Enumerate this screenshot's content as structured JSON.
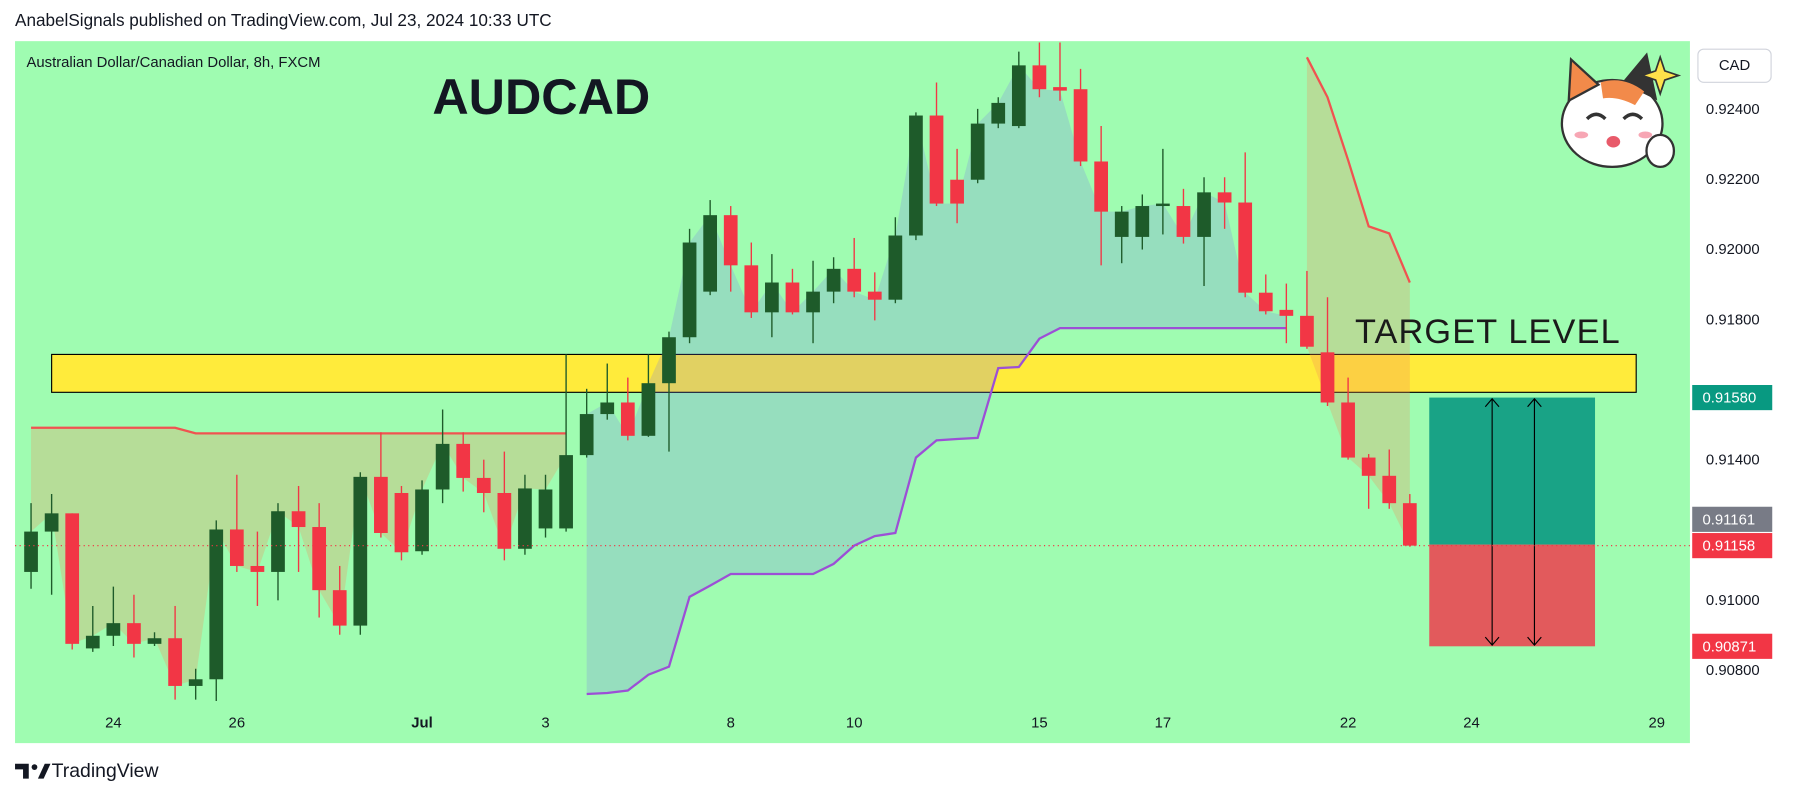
{
  "header": "AnabelSignals published on TradingView.com, Jul 23, 2024 10:33 UTC",
  "footer": "TradingView",
  "chart_data": {
    "type": "candlestick",
    "title": "AUDCAD",
    "subtitle": "Australian Dollar/Canadian Dollar, 8h, FXCM",
    "currency": "CAD",
    "annotation": "TARGET LEVEL",
    "categories": [
      null,
      null,
      null,
      null,
      "24",
      null,
      null,
      null,
      null,
      null,
      "26",
      null,
      null,
      null,
      null,
      null,
      null,
      null,
      null,
      "Jul",
      null,
      null,
      null,
      null,
      null,
      "3",
      null,
      null,
      null,
      null,
      null,
      null,
      null,
      null,
      "8",
      null,
      null,
      null,
      null,
      null,
      "10",
      null,
      null,
      null,
      null,
      null,
      null,
      null,
      null,
      "15",
      null,
      null,
      null,
      null,
      null,
      "17",
      null,
      null,
      null,
      null,
      null,
      null,
      null,
      null,
      "22",
      null,
      null,
      null,
      null,
      null,
      "24",
      null,
      null,
      null,
      null,
      null,
      null,
      null,
      null,
      "29"
    ],
    "open": [
      0.91083,
      0.91198,
      0.9125,
      0.90865,
      0.90901,
      0.90937,
      0.90878,
      0.90894,
      0.90758,
      0.90777,
      0.91204,
      0.911,
      0.91083,
      0.91256,
      0.91211,
      0.91031,
      0.9093,
      0.91354,
      0.91308,
      0.91142,
      0.91318,
      0.91448,
      0.91351,
      0.91308,
      0.91149,
      0.91207,
      0.91207,
      0.91416,
      0.91533,
      0.91566,
      0.91471,
      0.91621,
      0.91752,
      0.91882,
      0.921,
      0.91957,
      0.91823,
      0.91908,
      0.91823,
      0.91882,
      0.91947,
      0.91882,
      0.91859,
      0.92042,
      0.92384,
      0.92201,
      0.92201,
      0.92361,
      0.92354,
      0.92527,
      0.92465,
      0.92459,
      0.92253,
      0.92038,
      0.92038,
      0.92126,
      0.92126,
      0.92038,
      0.92165,
      0.92136,
      0.91879,
      0.9183,
      0.91813,
      0.91709,
      0.91566,
      0.91409,
      0.91357,
      0.91279,
      null,
      null,
      null,
      null,
      null,
      null,
      null,
      null,
      null,
      null,
      null,
      null
    ],
    "high": [
      0.91279,
      0.91305,
      0.9125,
      0.90986,
      0.91041,
      0.91018,
      0.90911,
      0.90986,
      0.90807,
      0.9123,
      0.9136,
      0.91198,
      0.91279,
      0.91328,
      0.91279,
      0.911,
      0.91367,
      0.91481,
      0.91328,
      0.91344,
      0.91546,
      0.91481,
      0.91403,
      0.91426,
      0.9136,
      0.9136,
      0.91703,
      0.91605,
      0.91677,
      0.91637,
      0.91703,
      0.91768,
      0.92061,
      0.92143,
      0.92126,
      0.92022,
      0.91989,
      0.91947,
      0.9197,
      0.9198,
      0.92035,
      0.91937,
      0.92094,
      0.92393,
      0.92478,
      0.92289,
      0.92403,
      0.92436,
      0.92566,
      0.92592,
      0.92592,
      0.92517,
      0.92354,
      0.92126,
      0.92159,
      0.92289,
      0.92175,
      0.92208,
      0.92208,
      0.92279,
      0.91931,
      0.91905,
      0.91941,
      0.91866,
      0.91637,
      0.91419,
      0.91432,
      0.91305,
      null,
      null,
      null,
      null,
      null,
      null,
      null,
      null,
      null,
      null,
      null,
      null
    ],
    "low": [
      0.91035,
      0.91018,
      0.90862,
      0.90855,
      0.90872,
      0.90839,
      0.90872,
      0.90719,
      0.90719,
      0.90715,
      0.91083,
      0.90986,
      0.91002,
      0.91083,
      0.90953,
      0.90904,
      0.90904,
      0.91181,
      0.91116,
      0.91132,
      0.91279,
      0.91312,
      0.91253,
      0.91116,
      0.91132,
      0.91181,
      0.91198,
      0.91409,
      0.91517,
      0.91458,
      0.91468,
      0.91426,
      0.91735,
      0.91872,
      0.91882,
      0.91807,
      0.91752,
      0.91817,
      0.91735,
      0.91849,
      0.91866,
      0.918,
      0.91849,
      0.92029,
      0.92126,
      0.92077,
      0.92191,
      0.92348,
      0.92348,
      0.92436,
      0.92426,
      0.9224,
      0.91957,
      0.91963,
      0.92002,
      0.92045,
      0.92019,
      0.91898,
      0.92061,
      0.91866,
      0.91817,
      0.91735,
      0.91719,
      0.91556,
      0.91403,
      0.91263,
      0.91263,
      0.91155,
      null,
      null,
      null,
      null,
      null,
      null,
      null,
      null,
      null,
      null,
      null,
      null
    ],
    "close": [
      0.91198,
      0.9125,
      0.90878,
      0.90901,
      0.90937,
      0.90878,
      0.90894,
      0.90758,
      0.90777,
      0.91204,
      0.911,
      0.91083,
      0.91256,
      0.91211,
      0.91031,
      0.9093,
      0.91354,
      0.91194,
      0.91139,
      0.91318,
      0.91448,
      0.91351,
      0.91308,
      0.91149,
      0.91321,
      0.91318,
      0.91416,
      0.91533,
      0.91566,
      0.91471,
      0.91621,
      0.91752,
      0.92022,
      0.921,
      0.91957,
      0.91823,
      0.91908,
      0.91823,
      0.91882,
      0.91947,
      0.91882,
      0.91859,
      0.92042,
      0.92384,
      0.92133,
      0.92133,
      0.92361,
      0.9242,
      0.92527,
      0.92459,
      0.92455,
      0.92253,
      0.9211,
      0.9211,
      0.92126,
      0.92133,
      0.92038,
      0.92165,
      0.92136,
      0.91879,
      0.91826,
      0.91813,
      0.91725,
      0.91566,
      0.91409,
      0.91357,
      0.91279,
      0.91158,
      null,
      null,
      null,
      null,
      null,
      null,
      null,
      null,
      null,
      null,
      null,
      null
    ],
    "up_color": "#1e5b2a",
    "down_color": "#f23645",
    "upper_band": {
      "color": "#f05350",
      "fill": "rgba(245,140,90,0.28)",
      "values": [
        0.91494,
        0.91494,
        0.91494,
        0.91494,
        0.91494,
        0.91494,
        0.91494,
        0.91494,
        0.91478,
        0.91478,
        0.91478,
        0.91478,
        0.91478,
        0.91478,
        0.91478,
        0.91478,
        0.91478,
        0.91478,
        0.91478,
        0.91478,
        0.91478,
        0.91478,
        0.91478,
        0.91478,
        0.91478,
        0.91478,
        0.91478,
        null,
        null,
        null,
        null,
        null,
        null,
        null,
        null,
        null,
        null,
        null,
        null,
        null,
        null,
        null,
        null,
        null,
        null,
        null,
        null,
        null,
        null,
        null,
        null,
        null,
        null,
        null,
        null,
        null,
        null,
        null,
        null,
        null,
        null,
        null,
        0.9255,
        0.92436,
        0.92257,
        0.92068,
        0.92048,
        0.91908,
        null,
        null,
        null,
        null,
        null,
        null,
        null,
        null,
        null,
        null,
        null,
        null
      ]
    },
    "lower_band": {
      "color": "#9c4fd6",
      "fill": "rgba(120,120,235,0.22)",
      "values": [
        null,
        null,
        null,
        null,
        null,
        null,
        null,
        null,
        null,
        null,
        null,
        null,
        null,
        null,
        null,
        null,
        null,
        null,
        null,
        null,
        null,
        null,
        null,
        null,
        null,
        null,
        null,
        0.90735,
        0.90738,
        0.90745,
        0.9079,
        0.90813,
        0.91012,
        0.91044,
        0.91077,
        0.91077,
        0.91077,
        0.91077,
        0.91077,
        0.91106,
        0.91158,
        0.91185,
        0.91194,
        0.91409,
        0.91458,
        0.91462,
        0.91465,
        0.91664,
        0.91667,
        0.91748,
        0.91778,
        0.91778,
        0.91778,
        0.91778,
        0.91778,
        0.91778,
        0.91778,
        0.91778,
        0.91778,
        0.91778,
        0.91778,
        0.91778,
        null,
        null,
        null,
        null,
        null,
        null,
        null,
        null,
        null,
        null,
        null,
        null,
        null,
        null,
        null,
        null,
        null,
        null
      ]
    },
    "zone": {
      "low": 0.91595,
      "high": 0.91703,
      "color": "#ffeb3b"
    },
    "price_labels": [
      {
        "value": 0.9158,
        "label": "0.91580",
        "color": "#089981"
      },
      {
        "value": 0.91161,
        "label": "0.91161",
        "color": "#787b86"
      },
      {
        "value": 0.91158,
        "label": "0.91158",
        "color": "#f23645"
      },
      {
        "value": 0.90871,
        "label": "0.90871",
        "color": "#f23645"
      }
    ],
    "profit_color": "#19a386",
    "loss_color": "#e25a5c",
    "ylim": [
      0.90595,
      0.92596
    ],
    "yticks": [
      {
        "value": 0.924,
        "label": "0.92400"
      },
      {
        "value": 0.922,
        "label": "0.92200"
      },
      {
        "value": 0.92,
        "label": "0.92000"
      },
      {
        "value": 0.918,
        "label": "0.91800"
      },
      {
        "value": 0.914,
        "label": "0.91400"
      },
      {
        "value": 0.91,
        "label": "0.91000"
      },
      {
        "value": 0.908,
        "label": "0.90800"
      }
    ],
    "grid": false
  }
}
